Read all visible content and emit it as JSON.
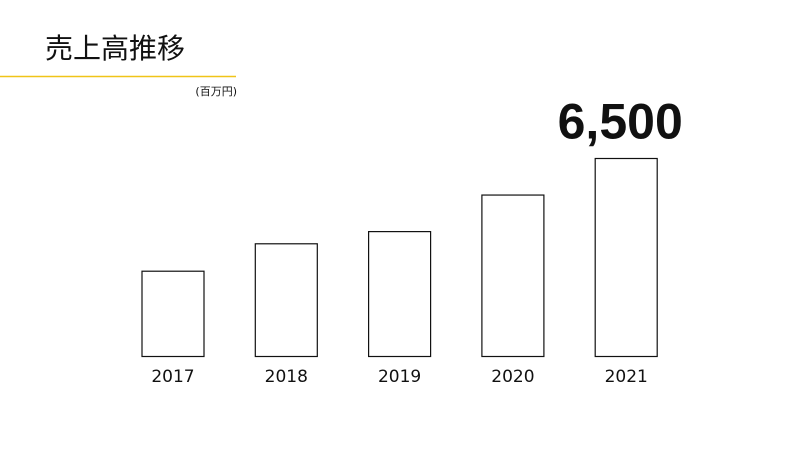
{
  "chart_data": {
    "type": "bar",
    "title": "売上高推移",
    "unit": "(百万円)",
    "categories": [
      "2017",
      "2018",
      "2019",
      "2020",
      "2021"
    ],
    "values": [
      2800,
      3700,
      4100,
      5300,
      6500
    ],
    "value_labels": [
      null,
      null,
      null,
      null,
      "6,500"
    ],
    "color": "#ffffff",
    "edge_color": "#111111"
  }
}
